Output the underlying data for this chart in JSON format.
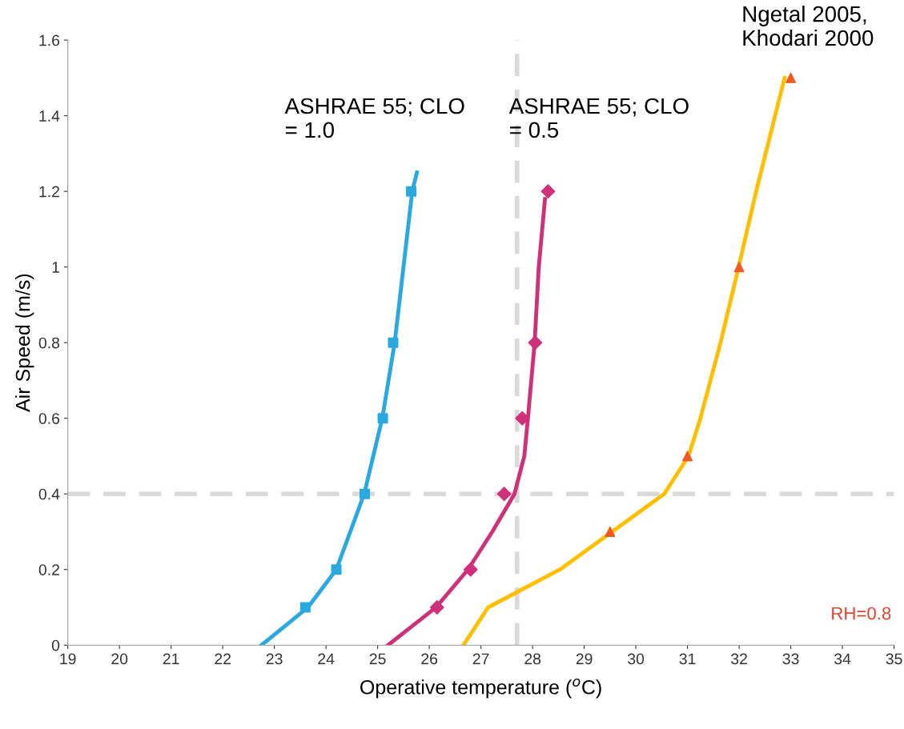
{
  "chart_data": {
    "type": "line",
    "xlabel": "Operative temperature ($^{o}$C)",
    "ylabel": "Air Speed (m/s)",
    "xlim": [
      19,
      35
    ],
    "xticks": [
      19,
      20,
      21,
      22,
      23,
      24,
      25,
      26,
      27,
      28,
      29,
      30,
      31,
      32,
      33,
      34,
      35
    ],
    "ylim": [
      0,
      1.6
    ],
    "yticks": [
      0,
      0.2,
      0.4,
      0.6,
      0.8,
      1,
      1.2,
      1.4,
      1.6
    ],
    "grid": false,
    "legend": false,
    "series": [
      {
        "color": "#29a9e0",
        "marker": "none",
        "x": [
          22.75,
          23.2,
          23.65,
          24.2,
          24.74,
          25.09,
          25.33,
          25.5,
          25.67,
          25.76
        ],
        "values": [
          0,
          0.05,
          0.1,
          0.2,
          0.4,
          0.6,
          0.8,
          1.0,
          1.2,
          1.25
        ]
      },
      {
        "type": "scatter",
        "color": "#29a9e0",
        "marker": "square",
        "x": [
          23.6,
          24.2,
          24.75,
          25.1,
          25.3,
          25.65
        ],
        "values": [
          0.1,
          0.2,
          0.4,
          0.6,
          0.8,
          1.2
        ]
      },
      {
        "color": "#d0307a",
        "marker": "none",
        "x": [
          25.2,
          26.13,
          26.75,
          27.22,
          27.65,
          27.84,
          27.91,
          28.04,
          28.12,
          28.24
        ],
        "values": [
          0,
          0.1,
          0.2,
          0.3,
          0.4,
          0.5,
          0.6,
          0.8,
          1.0,
          1.18
        ]
      },
      {
        "type": "scatter",
        "color": "#d0307a",
        "marker": "diamond",
        "x": [
          26.15,
          26.8,
          27.45,
          27.8,
          28.05,
          28.3
        ],
        "values": [
          0.1,
          0.2,
          0.4,
          0.6,
          0.8,
          1.2
        ]
      },
      {
        "color": "#ffbf00",
        "marker": "none",
        "x": [
          26.66,
          27.14,
          28.53,
          29.54,
          30.55,
          31.02,
          31.25,
          31.64,
          31.99,
          32.33,
          32.88
        ],
        "values": [
          0,
          0.1,
          0.2,
          0.3,
          0.4,
          0.5,
          0.6,
          0.8,
          1.0,
          1.2,
          1.5
        ]
      },
      {
        "type": "scatter",
        "color": "#f05a22",
        "marker": "triangle",
        "x": [
          29.5,
          31,
          32,
          33
        ],
        "values": [
          0.3,
          0.5,
          1.0,
          1.5
        ]
      }
    ],
    "ref_lines": [
      {
        "axis": "x",
        "value": 27.7,
        "color": "#d9d9d9",
        "line_style": "dashed"
      },
      {
        "axis": "y",
        "value": 0.4,
        "color": "#d9d9d9",
        "line_style": "dashed"
      }
    ],
    "annotations": [
      "ASHRAE 55; CLO\n= 1.0",
      "ASHRAE 55; CLO\n= 0.5",
      "Ngetal 2005,\nKhodari 2000",
      "RH=0.8"
    ]
  }
}
